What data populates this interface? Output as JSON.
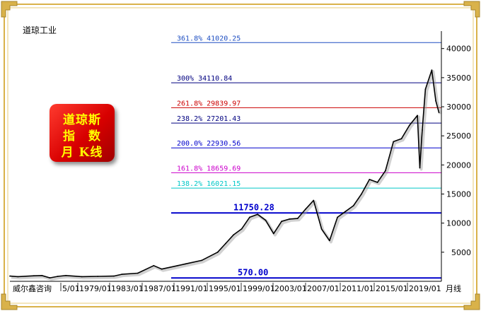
{
  "title": "道琼工业",
  "badge": {
    "line1": "道琼斯",
    "line2": "指　数",
    "line3": "月 K线"
  },
  "colors": {
    "frame_gold": "#d9b24a",
    "price": "#000000"
  },
  "chart_data": {
    "type": "line",
    "title": "道琼工业",
    "ylim": [
      0,
      43000
    ],
    "y_ticks": [
      5000,
      10000,
      15000,
      20000,
      25000,
      30000,
      35000,
      40000
    ],
    "x_tick_labels": [
      "威尔鑫咨询",
      "5/01",
      "1979/01",
      "1983/01",
      "1987/01",
      "1991/01",
      "1995/01",
      "1999/01",
      "2003/01",
      "2007/01",
      "2011/01",
      "2015/01",
      "2019/01",
      "月线"
    ],
    "levels": [
      {
        "label": "361.8%  41020.25",
        "value": 41020.25,
        "color": "#1f4fc2"
      },
      {
        "label": "300%  34110.84",
        "value": 34110.84,
        "color": "#000080"
      },
      {
        "label": "261.8%  29839.97",
        "value": 29839.97,
        "color": "#cc0000"
      },
      {
        "label": "238.2%  27201.43",
        "value": 27201.43,
        "color": "#000080"
      },
      {
        "label": "200.0%  22930.56",
        "value": 22930.56,
        "color": "#0000cc"
      },
      {
        "label": "161.8%  18659.69",
        "value": 18659.69,
        "color": "#cc00cc"
      },
      {
        "label": "138.2%  16021.15",
        "value": 16021.15,
        "color": "#00c8c8"
      },
      {
        "label": "11750.28",
        "value": 11750.28,
        "color": "#0000cc"
      },
      {
        "label": "570.00",
        "value": 570.0,
        "color": "#0000cc"
      }
    ],
    "series": [
      {
        "x": [
          1969,
          1970,
          1972,
          1973,
          1974,
          1975,
          1976,
          1978,
          1980,
          1982,
          1983,
          1985,
          1987,
          1988,
          1990,
          1991,
          1993,
          1995,
          1996,
          1997,
          1998,
          1999,
          2000,
          2001,
          2002,
          2003,
          2004,
          2005,
          2006,
          2007,
          2008,
          2009,
          2010,
          2011,
          2012,
          2013,
          2014,
          2015,
          2016,
          2017,
          2018,
          2019,
          2020,
          2020.3,
          2020.6,
          2021,
          2021.8,
          2022.3,
          2022.7
        ],
        "y": [
          900,
          800,
          950,
          1000,
          600,
          850,
          1000,
          800,
          850,
          900,
          1200,
          1400,
          2700,
          2100,
          2700,
          3000,
          3600,
          5000,
          6500,
          8000,
          9000,
          11000,
          11500,
          10500,
          8200,
          10300,
          10700,
          10800,
          12400,
          13900,
          9000,
          7000,
          11000,
          12000,
          13000,
          15000,
          17500,
          17000,
          19000,
          24000,
          24500,
          26800,
          28500,
          19500,
          26000,
          33000,
          36300,
          31000,
          29000
        ]
      }
    ]
  }
}
